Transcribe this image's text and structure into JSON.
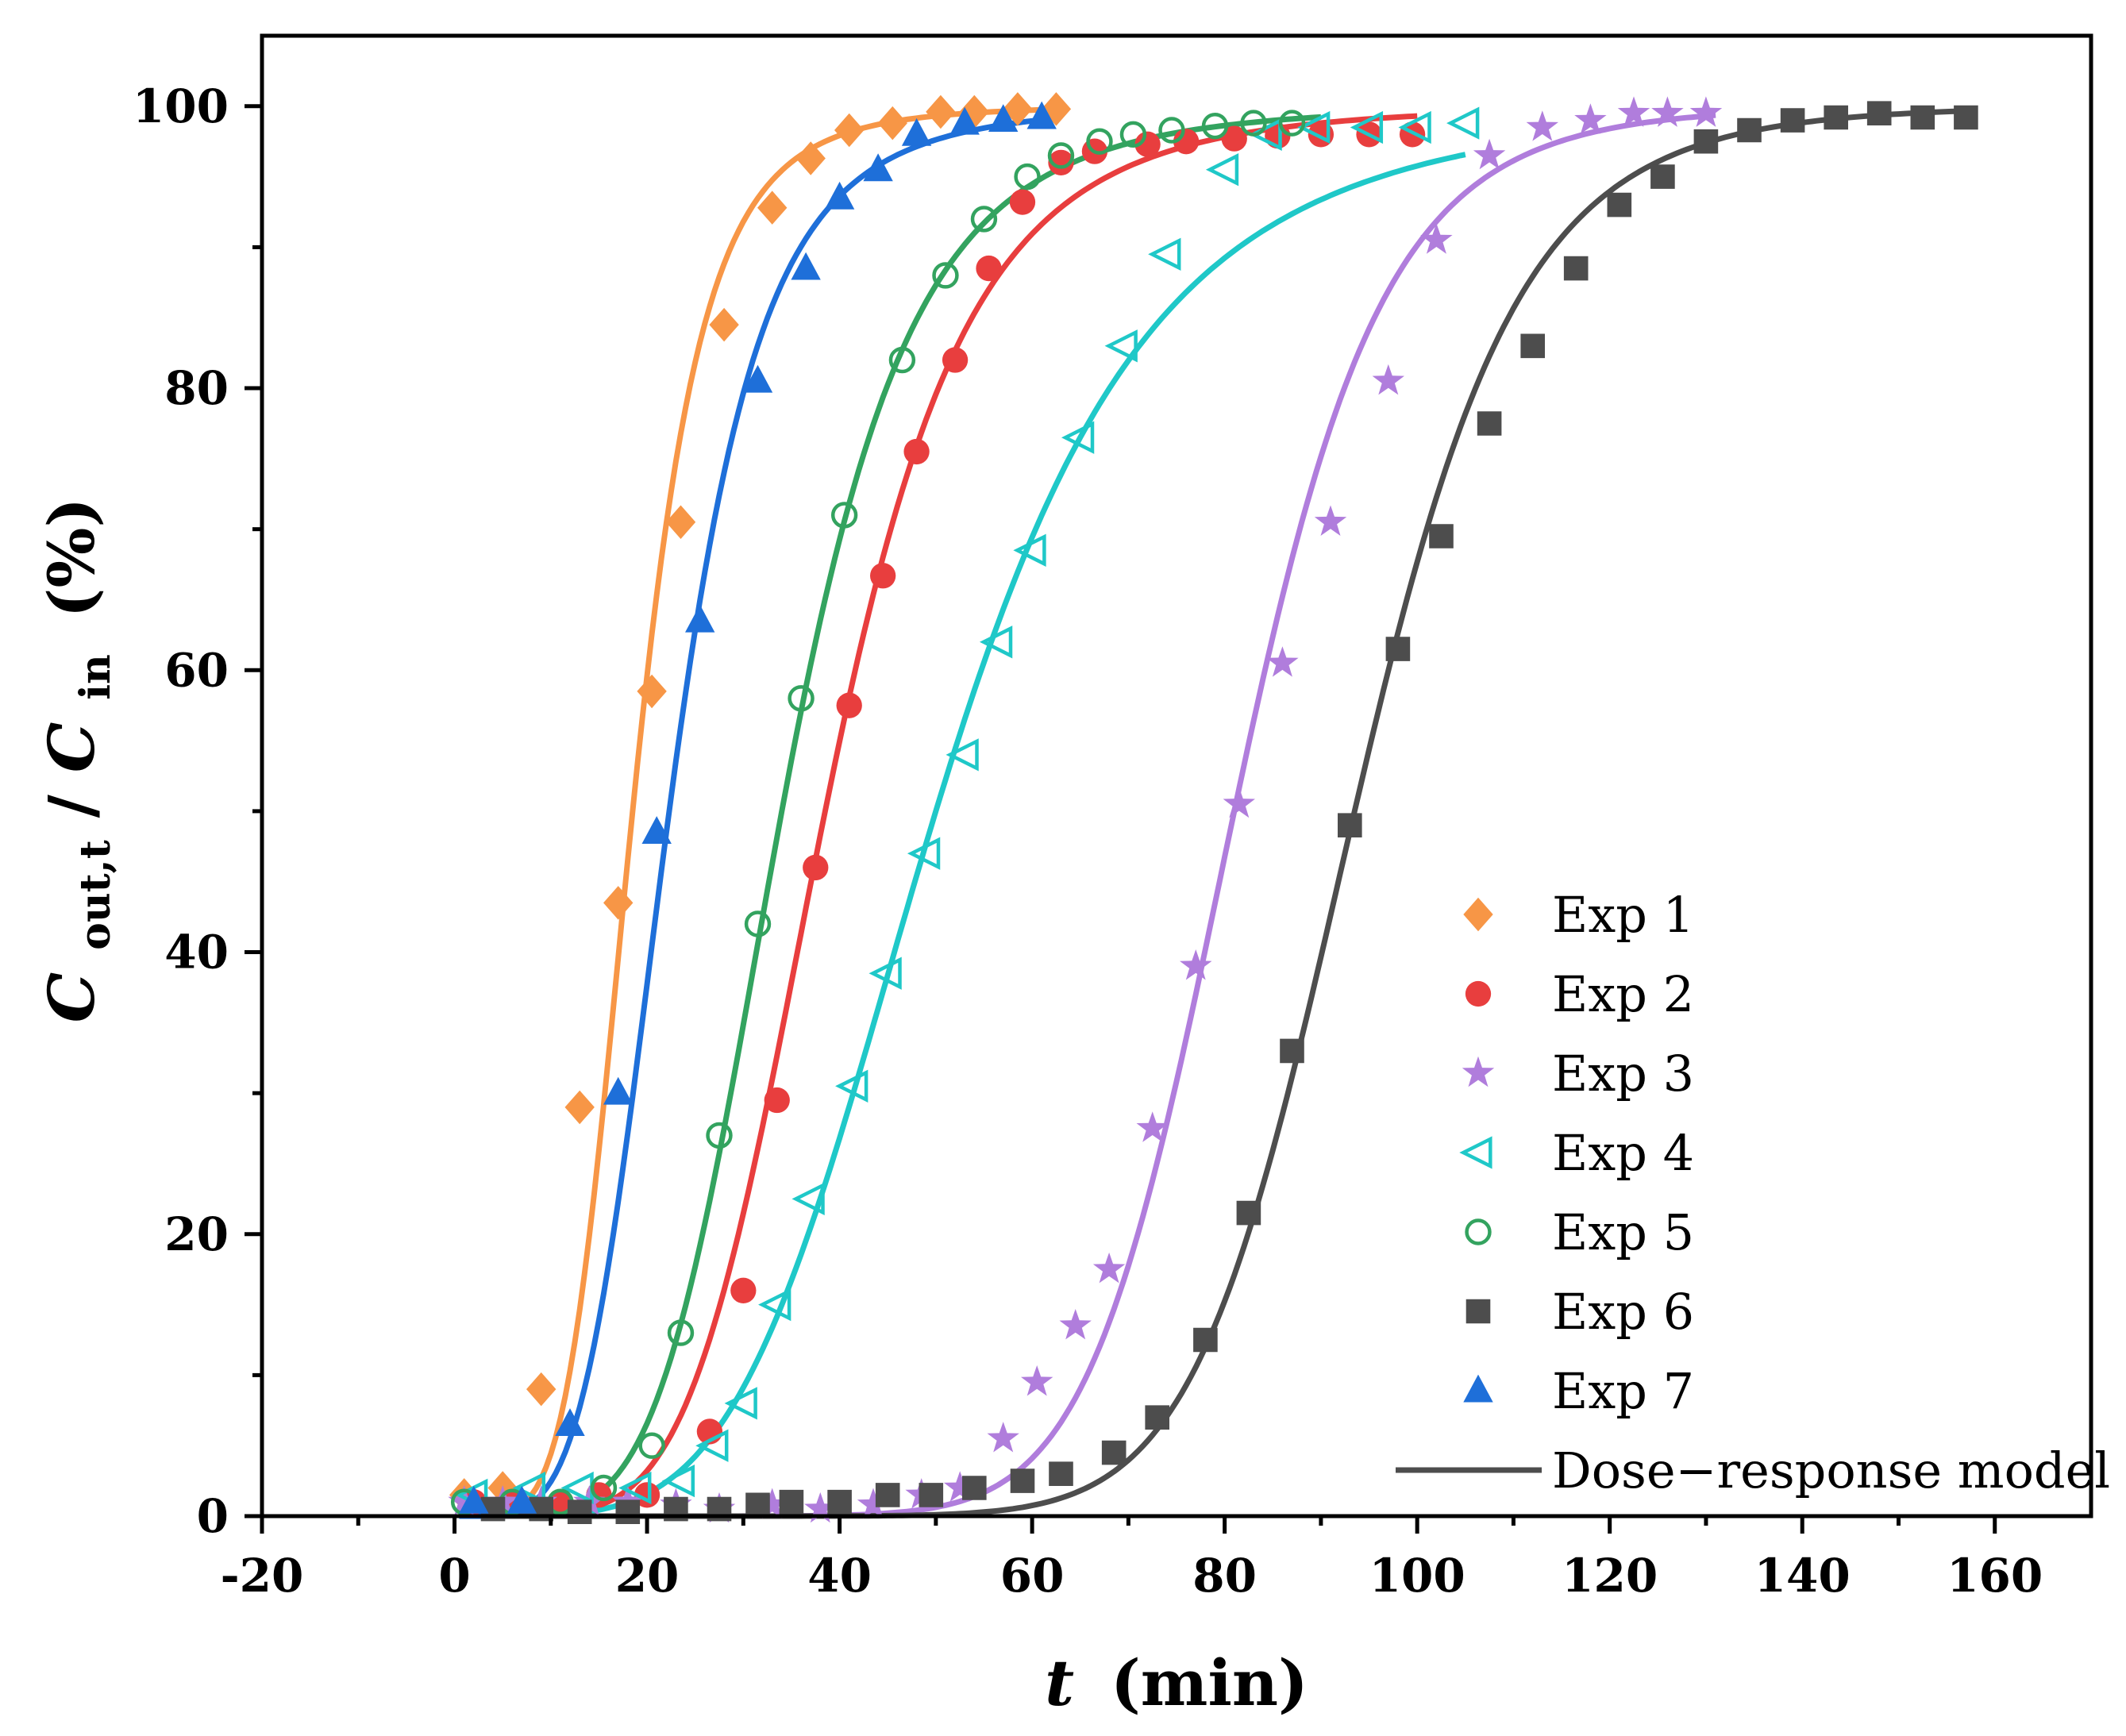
{
  "chart_data": {
    "type": "scatter",
    "title": "",
    "xlabel": "t (min)",
    "xlabel_var": "t",
    "xlabel_unit": "(min)",
    "ylabel": "Cout,t/Cin (%)",
    "ylabel_parts": {
      "c1": "C",
      "sub1": "out,t",
      "slash": "/",
      "c2": "C",
      "sub2": "in",
      "unit": "(%)"
    },
    "xlim": [
      -20,
      170
    ],
    "ylim": [
      0,
      105
    ],
    "xticks": [
      -20,
      0,
      20,
      40,
      60,
      80,
      100,
      120,
      140,
      160
    ],
    "yticks": [
      0,
      20,
      40,
      60,
      80,
      100
    ],
    "grid": false,
    "legend_position": "bottom-right",
    "model_name": "Dose−response model",
    "model_color": "#4d4d4d",
    "series": [
      {
        "name": "Exp 1",
        "color": "#f79646",
        "marker": "diamond",
        "fill": true,
        "x": [
          1,
          5,
          9,
          13,
          17,
          20.5,
          23.5,
          28,
          33,
          37,
          41,
          45.5,
          50.5,
          54,
          58.5,
          62.5
        ],
        "y": [
          1.5,
          2,
          9,
          29,
          43.5,
          58.5,
          70.5,
          84.5,
          92.8,
          96.3,
          98.3,
          98.8,
          99.6,
          99.6,
          99.8,
          99.8
        ],
        "fit": {
          "x0": 18.5,
          "p": 5.0,
          "xmax": 62
        }
      },
      {
        "name": "Exp 2",
        "color": "#e83e3e",
        "marker": "circle",
        "fill": true,
        "x": [
          2,
          6,
          11,
          15,
          20,
          26.5,
          30,
          33.5,
          37.5,
          41,
          44.5,
          48,
          52,
          55.5,
          59,
          63,
          66.5,
          72,
          76,
          81,
          85.5,
          90,
          95,
          99.5
        ],
        "y": [
          1,
          1,
          1,
          1.5,
          1.5,
          6,
          16,
          29.5,
          46,
          57.5,
          66.7,
          75.5,
          82,
          88.5,
          93.2,
          96,
          96.8,
          97.3,
          97.5,
          97.7,
          97.9,
          98,
          98,
          98
        ],
        "fit": {
          "x0": 38.5,
          "p": 5.2,
          "xmax": 100
        }
      },
      {
        "name": "Exp 3",
        "color": "#b07ddc",
        "marker": "star",
        "fill": true,
        "x": [
          1,
          5,
          9,
          14,
          18,
          23,
          27.5,
          33,
          38,
          43.5,
          48.5,
          52.5,
          57,
          60.5,
          64.5,
          68,
          72.5,
          77,
          81.5,
          86,
          91,
          97,
          102,
          107.5,
          113,
          118,
          122.5,
          126,
          130
        ],
        "y": [
          1,
          1,
          1,
          1,
          1,
          0.8,
          0.5,
          0.8,
          0.5,
          0.8,
          1.5,
          2,
          5.5,
          9.5,
          13.5,
          17.5,
          27.5,
          39,
          50.5,
          60.5,
          70.5,
          80.5,
          90.5,
          96.5,
          98.5,
          99,
          99.5,
          99.5,
          99.5
        ],
        "fit": {
          "x0": 81,
          "p": 10.5,
          "xmax": 131
        }
      },
      {
        "name": "Exp 4",
        "color": "#1fc8c8",
        "marker": "triangle-left",
        "fill": false,
        "x": [
          2,
          8,
          13,
          19,
          23.5,
          27,
          30,
          33.5,
          37,
          41.5,
          45,
          49,
          53,
          56.5,
          60,
          65,
          69.5,
          74,
          80,
          84.5,
          89.5,
          95,
          100,
          105
        ],
        "y": [
          1.5,
          2,
          2,
          2,
          2.5,
          5,
          8,
          15,
          22.5,
          30.5,
          38.5,
          47,
          54,
          62,
          68.5,
          76.5,
          83,
          89.5,
          95.5,
          98,
          98.5,
          98.5,
          98.5,
          98.8
        ],
        "fit": {
          "x0": 50,
          "p": 4.5,
          "xmax": 105
        }
      },
      {
        "name": "Exp 5",
        "color": "#33a35f",
        "marker": "circle",
        "fill": false,
        "x": [
          1,
          6,
          11,
          15.5,
          20.5,
          23.5,
          27.5,
          31.5,
          36,
          40.5,
          46.5,
          51,
          55,
          59.5,
          63,
          67,
          70.5,
          74.5,
          79,
          83,
          87
        ],
        "y": [
          1,
          1,
          1,
          2,
          5,
          13,
          27,
          42,
          58,
          71,
          82,
          88,
          92,
          95,
          96.5,
          97.5,
          98,
          98.3,
          98.6,
          98.8,
          98.8
        ],
        "fit": {
          "x0": 34,
          "p": 5.0,
          "xmax": 90
        }
      },
      {
        "name": "Exp 6",
        "color": "#4d4d4d",
        "marker": "square",
        "fill": true,
        "x": [
          4,
          9,
          13,
          18,
          23,
          27.5,
          31.5,
          35,
          40,
          45,
          49.5,
          54,
          59,
          63,
          68.5,
          73,
          78,
          82.5,
          87,
          93,
          98,
          102.5,
          107.5,
          112,
          116.5,
          121,
          125.5,
          130,
          134.5,
          139,
          143.5,
          148,
          152.5,
          157
        ],
        "y": [
          0.5,
          0.5,
          0.3,
          0.3,
          0.5,
          0.5,
          0.8,
          1,
          1,
          1.5,
          1.5,
          2,
          2.5,
          3,
          4.5,
          7,
          12.5,
          21.5,
          33,
          49,
          61.5,
          69.5,
          77.5,
          83,
          88.5,
          93,
          95,
          97.5,
          98.3,
          99,
          99.2,
          99.5,
          99.2,
          99.2
        ],
        "fit": {
          "x0": 93.5,
          "p": 11.0,
          "xmax": 157
        }
      },
      {
        "name": "Exp 7",
        "color": "#1e6fd9",
        "marker": "triangle-up",
        "fill": true,
        "x": [
          2,
          7,
          12,
          17,
          21,
          25.5,
          31.5,
          36.5,
          40,
          44,
          48,
          53,
          57,
          61
        ],
        "y": [
          1,
          1,
          6.5,
          30,
          48.5,
          63.5,
          80.5,
          88.5,
          93.5,
          95.5,
          98,
          98.8,
          99,
          99.2
        ],
        "fit": {
          "x0": 22.3,
          "p": 4.6,
          "xmax": 61
        }
      }
    ]
  }
}
